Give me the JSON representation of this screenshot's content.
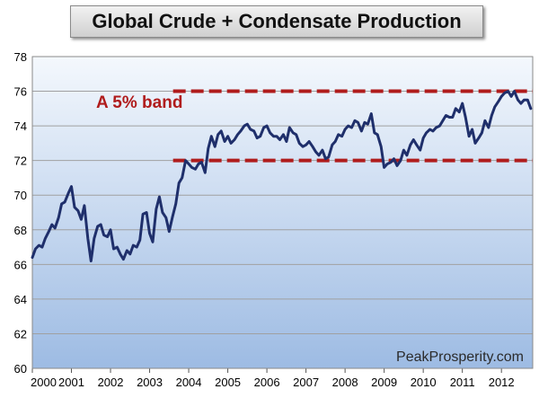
{
  "chart_data": {
    "type": "line",
    "title": "Global Crude + Condensate Production",
    "xlabel": "",
    "ylabel": "",
    "xlim": [
      2000,
      2012.8
    ],
    "ylim": [
      60,
      78
    ],
    "y_ticks": [
      60,
      62,
      64,
      66,
      68,
      70,
      72,
      74,
      76,
      78
    ],
    "x_ticks": [
      "2000",
      "2001",
      "2002",
      "2003",
      "2004",
      "2005",
      "2006",
      "2007",
      "2008",
      "2009",
      "2010",
      "2011",
      "2012"
    ],
    "grid": true,
    "series": [
      {
        "color": "#1f2f6b",
        "points": [
          [
            2000.0,
            66.4
          ],
          [
            2000.08,
            66.9
          ],
          [
            2000.17,
            67.1
          ],
          [
            2000.25,
            67.0
          ],
          [
            2000.33,
            67.5
          ],
          [
            2000.42,
            67.9
          ],
          [
            2000.5,
            68.3
          ],
          [
            2000.58,
            68.1
          ],
          [
            2000.67,
            68.7
          ],
          [
            2000.75,
            69.5
          ],
          [
            2000.83,
            69.6
          ],
          [
            2000.92,
            70.1
          ],
          [
            2001.0,
            70.5
          ],
          [
            2001.08,
            69.3
          ],
          [
            2001.17,
            69.1
          ],
          [
            2001.25,
            68.6
          ],
          [
            2001.33,
            69.4
          ],
          [
            2001.42,
            67.5
          ],
          [
            2001.5,
            66.2
          ],
          [
            2001.58,
            67.5
          ],
          [
            2001.67,
            68.2
          ],
          [
            2001.75,
            68.3
          ],
          [
            2001.83,
            67.7
          ],
          [
            2001.92,
            67.6
          ],
          [
            2002.0,
            68.0
          ],
          [
            2002.08,
            66.9
          ],
          [
            2002.17,
            67.0
          ],
          [
            2002.25,
            66.6
          ],
          [
            2002.33,
            66.3
          ],
          [
            2002.42,
            66.8
          ],
          [
            2002.5,
            66.6
          ],
          [
            2002.58,
            67.1
          ],
          [
            2002.67,
            67.0
          ],
          [
            2002.75,
            67.4
          ],
          [
            2002.83,
            68.9
          ],
          [
            2002.92,
            69.0
          ],
          [
            2003.0,
            67.8
          ],
          [
            2003.08,
            67.3
          ],
          [
            2003.17,
            69.2
          ],
          [
            2003.25,
            69.9
          ],
          [
            2003.33,
            69.0
          ],
          [
            2003.42,
            68.7
          ],
          [
            2003.5,
            67.9
          ],
          [
            2003.58,
            68.7
          ],
          [
            2003.67,
            69.5
          ],
          [
            2003.75,
            70.7
          ],
          [
            2003.83,
            71.0
          ],
          [
            2003.92,
            72.0
          ],
          [
            2004.0,
            71.8
          ],
          [
            2004.08,
            71.6
          ],
          [
            2004.17,
            71.5
          ],
          [
            2004.25,
            71.8
          ],
          [
            2004.33,
            71.9
          ],
          [
            2004.42,
            71.3
          ],
          [
            2004.5,
            72.7
          ],
          [
            2004.58,
            73.4
          ],
          [
            2004.67,
            72.8
          ],
          [
            2004.75,
            73.5
          ],
          [
            2004.83,
            73.7
          ],
          [
            2004.92,
            73.1
          ],
          [
            2005.0,
            73.4
          ],
          [
            2005.08,
            73.0
          ],
          [
            2005.17,
            73.2
          ],
          [
            2005.25,
            73.5
          ],
          [
            2005.33,
            73.7
          ],
          [
            2005.42,
            74.0
          ],
          [
            2005.5,
            74.1
          ],
          [
            2005.58,
            73.8
          ],
          [
            2005.67,
            73.7
          ],
          [
            2005.75,
            73.3
          ],
          [
            2005.83,
            73.4
          ],
          [
            2005.92,
            73.9
          ],
          [
            2006.0,
            74.0
          ],
          [
            2006.08,
            73.6
          ],
          [
            2006.17,
            73.4
          ],
          [
            2006.25,
            73.4
          ],
          [
            2006.33,
            73.2
          ],
          [
            2006.42,
            73.5
          ],
          [
            2006.5,
            73.1
          ],
          [
            2006.58,
            73.9
          ],
          [
            2006.67,
            73.6
          ],
          [
            2006.75,
            73.5
          ],
          [
            2006.83,
            73.0
          ],
          [
            2006.92,
            72.8
          ],
          [
            2007.0,
            72.9
          ],
          [
            2007.08,
            73.1
          ],
          [
            2007.17,
            72.8
          ],
          [
            2007.25,
            72.5
          ],
          [
            2007.33,
            72.3
          ],
          [
            2007.42,
            72.6
          ],
          [
            2007.5,
            72.1
          ],
          [
            2007.58,
            72.2
          ],
          [
            2007.67,
            72.9
          ],
          [
            2007.75,
            73.1
          ],
          [
            2007.83,
            73.5
          ],
          [
            2007.92,
            73.4
          ],
          [
            2008.0,
            73.8
          ],
          [
            2008.08,
            74.0
          ],
          [
            2008.17,
            73.9
          ],
          [
            2008.25,
            74.3
          ],
          [
            2008.33,
            74.2
          ],
          [
            2008.42,
            73.7
          ],
          [
            2008.5,
            74.2
          ],
          [
            2008.58,
            74.1
          ],
          [
            2008.67,
            74.7
          ],
          [
            2008.75,
            73.6
          ],
          [
            2008.83,
            73.5
          ],
          [
            2008.92,
            72.8
          ],
          [
            2009.0,
            71.6
          ],
          [
            2009.08,
            71.8
          ],
          [
            2009.17,
            71.9
          ],
          [
            2009.25,
            72.1
          ],
          [
            2009.33,
            71.7
          ],
          [
            2009.42,
            72.0
          ],
          [
            2009.5,
            72.6
          ],
          [
            2009.58,
            72.3
          ],
          [
            2009.67,
            72.9
          ],
          [
            2009.75,
            73.2
          ],
          [
            2009.83,
            72.9
          ],
          [
            2009.92,
            72.6
          ],
          [
            2010.0,
            73.3
          ],
          [
            2010.08,
            73.6
          ],
          [
            2010.17,
            73.8
          ],
          [
            2010.25,
            73.7
          ],
          [
            2010.33,
            73.9
          ],
          [
            2010.42,
            74.0
          ],
          [
            2010.5,
            74.3
          ],
          [
            2010.58,
            74.6
          ],
          [
            2010.67,
            74.5
          ],
          [
            2010.75,
            74.5
          ],
          [
            2010.83,
            75.0
          ],
          [
            2010.92,
            74.8
          ],
          [
            2011.0,
            75.3
          ],
          [
            2011.08,
            74.5
          ],
          [
            2011.17,
            73.4
          ],
          [
            2011.25,
            73.8
          ],
          [
            2011.33,
            73.0
          ],
          [
            2011.42,
            73.3
          ],
          [
            2011.5,
            73.6
          ],
          [
            2011.58,
            74.3
          ],
          [
            2011.67,
            73.9
          ],
          [
            2011.75,
            74.6
          ],
          [
            2011.83,
            75.1
          ],
          [
            2011.92,
            75.4
          ],
          [
            2012.0,
            75.7
          ],
          [
            2012.08,
            75.9
          ],
          [
            2012.17,
            76.0
          ],
          [
            2012.25,
            75.7
          ],
          [
            2012.33,
            76.0
          ],
          [
            2012.42,
            75.5
          ],
          [
            2012.5,
            75.3
          ],
          [
            2012.58,
            75.5
          ],
          [
            2012.67,
            75.5
          ],
          [
            2012.75,
            75.0
          ]
        ]
      }
    ],
    "band": {
      "upper": 76,
      "lower": 72,
      "x_start": 2003.6,
      "x_end": 2012.8,
      "color": "#b01c1c",
      "label": "A 5% band",
      "label_color": "#b01c1c"
    },
    "watermark": "PeakProsperity.com",
    "colors": {
      "plot_bg_top": "#f4f8fd",
      "plot_bg_bottom": "#9dbbe3",
      "line": "#1f2f6b",
      "grid": "#a0a0a0"
    }
  }
}
